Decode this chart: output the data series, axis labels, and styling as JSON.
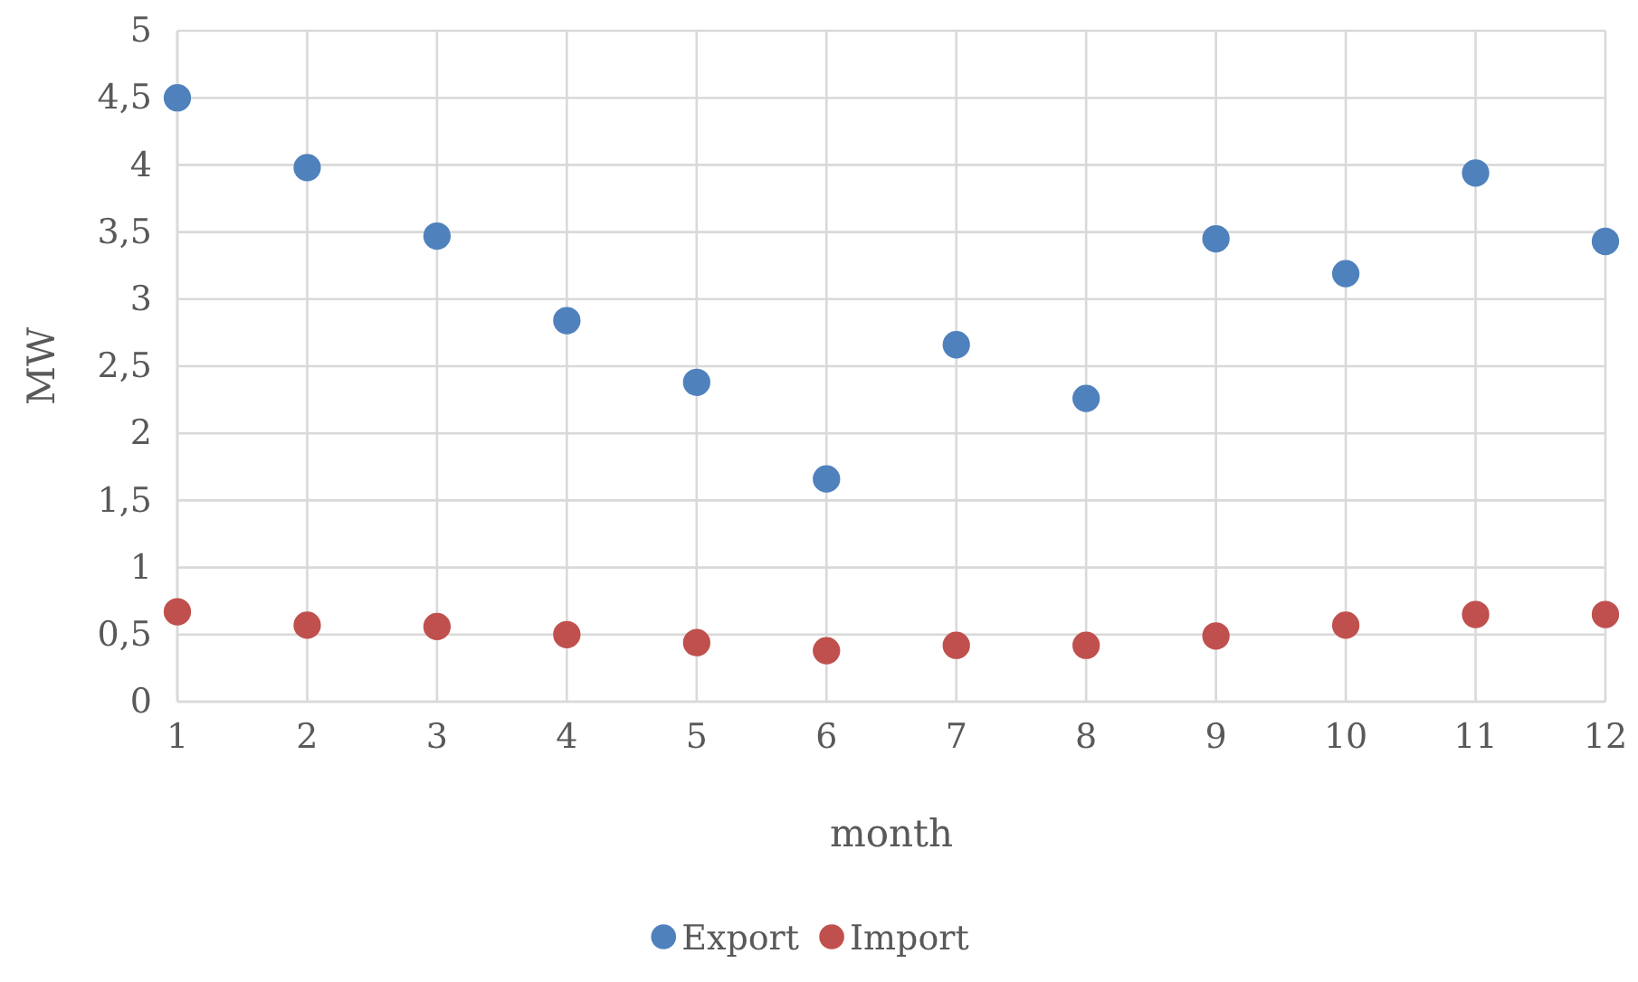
{
  "chart_data": {
    "type": "scatter",
    "xlabel": "month",
    "ylabel": "MW",
    "x": [
      1,
      2,
      3,
      4,
      5,
      6,
      7,
      8,
      9,
      10,
      11,
      12
    ],
    "series": [
      {
        "name": "Export",
        "color": "#4f81bd",
        "values": [
          4.5,
          3.98,
          3.47,
          2.84,
          2.38,
          1.66,
          2.66,
          2.26,
          3.45,
          3.19,
          3.94,
          3.43
        ]
      },
      {
        "name": "Import",
        "color": "#c0504d",
        "values": [
          0.67,
          0.57,
          0.56,
          0.5,
          0.44,
          0.38,
          0.42,
          0.42,
          0.49,
          0.57,
          0.65,
          0.65
        ]
      }
    ],
    "xlim": [
      1,
      12
    ],
    "xticks": [
      1,
      2,
      3,
      4,
      5,
      6,
      7,
      8,
      9,
      10,
      11,
      12
    ],
    "ylim": [
      0,
      5
    ],
    "yticks": [
      0,
      {
        "value": 0.5,
        "label": "0,5"
      },
      1,
      {
        "value": 1.5,
        "label": "1,5"
      },
      2,
      {
        "value": 2.5,
        "label": "2,5"
      },
      3,
      {
        "value": 3.5,
        "label": "3,5"
      },
      4,
      {
        "value": 4.5,
        "label": "4,5"
      },
      5
    ],
    "grid": true,
    "legend": "bottom",
    "marker": "circle"
  }
}
